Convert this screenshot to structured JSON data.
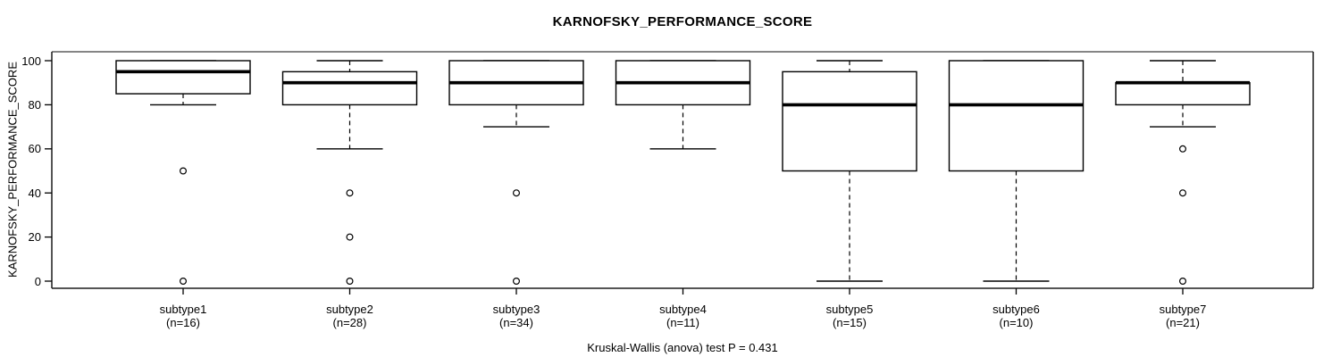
{
  "chart_data": {
    "type": "boxplot",
    "title": "KARNOFSKY_PERFORMANCE_SCORE",
    "ylabel": "KARNOFSKY_PERFORMANCE_SCORE",
    "xlabel": "",
    "ylim": [
      0,
      100
    ],
    "yticks": [
      0,
      20,
      40,
      60,
      80,
      100
    ],
    "grid": false,
    "footer_annotation": "Kruskal-Wallis (anova) test P = 0.431",
    "groups": [
      {
        "label": "subtype1",
        "n_label": "(n=16)",
        "n": 16,
        "whisker_low": 80,
        "q1": 85,
        "median": 95,
        "q3": 100,
        "whisker_high": 100,
        "outliers": [
          50,
          0
        ]
      },
      {
        "label": "subtype2",
        "n_label": "(n=28)",
        "n": 28,
        "whisker_low": 60,
        "q1": 80,
        "median": 90,
        "q3": 95,
        "whisker_high": 100,
        "outliers": [
          40,
          20,
          0
        ]
      },
      {
        "label": "subtype3",
        "n_label": "(n=34)",
        "n": 34,
        "whisker_low": 70,
        "q1": 80,
        "median": 90,
        "q3": 100,
        "whisker_high": 100,
        "outliers": [
          40,
          0
        ]
      },
      {
        "label": "subtype4",
        "n_label": "(n=11)",
        "n": 11,
        "whisker_low": 60,
        "q1": 80,
        "median": 90,
        "q3": 100,
        "whisker_high": 100,
        "outliers": []
      },
      {
        "label": "subtype5",
        "n_label": "(n=15)",
        "n": 15,
        "whisker_low": 0,
        "q1": 50,
        "median": 80,
        "q3": 95,
        "whisker_high": 100,
        "outliers": []
      },
      {
        "label": "subtype6",
        "n_label": "(n=10)",
        "n": 10,
        "whisker_low": 0,
        "q1": 50,
        "median": 80,
        "q3": 100,
        "whisker_high": 100,
        "outliers": []
      },
      {
        "label": "subtype7",
        "n_label": "(n=21)",
        "n": 21,
        "whisker_low": 70,
        "q1": 80,
        "median": 90,
        "q3": 90,
        "whisker_high": 100,
        "outliers": [
          60,
          40,
          0
        ]
      }
    ],
    "colors": {
      "background": "#ffffff",
      "box_fill": "#ffffff",
      "box_stroke": "#000000",
      "median": "#000000",
      "whisker": "#000000",
      "outlier_stroke": "#000000",
      "frame_top": "#858585",
      "frame": "#1d1d1d",
      "text": "#000000"
    }
  }
}
